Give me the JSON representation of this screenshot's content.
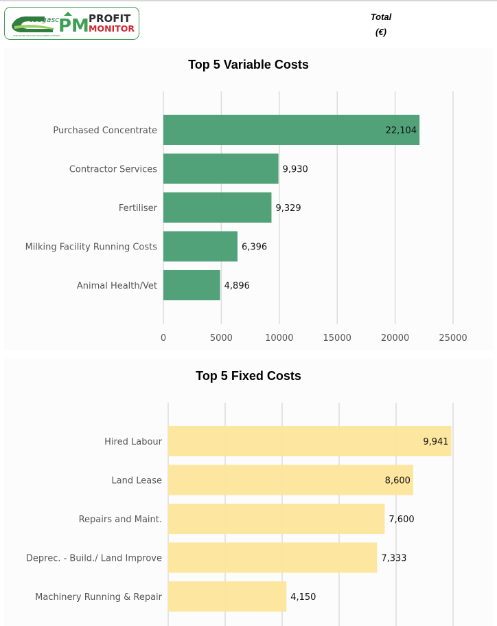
{
  "header": {
    "org_logo_text": "teagasc",
    "org_logo_subtext": "AGRICULTURE AND FOOD DEVELOPMENT AUTHORITY",
    "app_logo_mark": "PM",
    "app_name_line1": "PROFIT",
    "app_name_line2": "MONITOR",
    "column_label_line1": "Total",
    "column_label_line2": "(€)"
  },
  "colors": {
    "variable_bar": "#4a9e74",
    "fixed_bar": "#fde59b",
    "brand_green": "#3f9f55",
    "brand_red": "#d0262f",
    "grid": "#dcdcdc"
  },
  "chart_data": [
    {
      "type": "bar",
      "orientation": "horizontal",
      "title": "Top 5 Variable Costs",
      "categories": [
        "Purchased Concentrate",
        "Contractor Services",
        "Fertiliser",
        "Milking Facility Running Costs",
        "Animal Health/Vet"
      ],
      "values": [
        22104,
        9930,
        9329,
        6396,
        4896
      ],
      "value_labels": [
        "22,104",
        "9,930",
        "9,329",
        "6,396",
        "4,896"
      ],
      "xticks": [
        "0",
        "5000",
        "10000",
        "15000",
        "20000",
        "25000"
      ],
      "xlim": [
        0,
        25000
      ],
      "grid": true
    },
    {
      "type": "bar",
      "orientation": "horizontal",
      "title": "Top 5 Fixed Costs",
      "categories": [
        "Hired Labour",
        "Land Lease",
        "Repairs and Maint.",
        "Deprec. - Build./ Land Improve",
        "Machinery Running & Repair"
      ],
      "values": [
        9941,
        8600,
        7600,
        7333,
        4150
      ],
      "value_labels": [
        "9,941",
        "8,600",
        "7,600",
        "7,333",
        "4,150"
      ],
      "xlim": [
        0,
        10000
      ],
      "grid": true
    }
  ]
}
